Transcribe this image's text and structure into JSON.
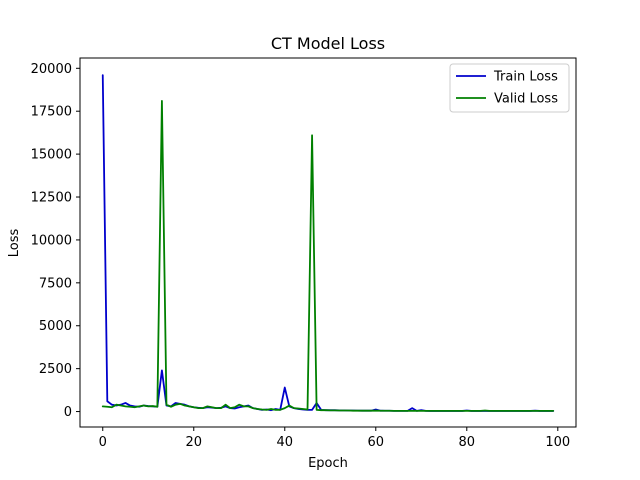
{
  "chart_data": {
    "type": "line",
    "title": "CT Model Loss",
    "xlabel": "Epoch",
    "ylabel": "Loss",
    "xlim": [
      -5,
      104
    ],
    "ylim": [
      -900,
      20600
    ],
    "xticks": [
      0,
      20,
      40,
      60,
      80,
      100
    ],
    "yticks": [
      0,
      2500,
      5000,
      7500,
      10000,
      12500,
      15000,
      17500,
      20000
    ],
    "grid": false,
    "legend_position": "top-right",
    "x": [
      0,
      1,
      2,
      3,
      4,
      5,
      6,
      7,
      8,
      9,
      10,
      11,
      12,
      13,
      14,
      15,
      16,
      17,
      18,
      19,
      20,
      21,
      22,
      23,
      24,
      25,
      26,
      27,
      28,
      29,
      30,
      31,
      32,
      33,
      34,
      35,
      36,
      37,
      38,
      39,
      40,
      41,
      42,
      43,
      44,
      45,
      46,
      47,
      48,
      49,
      50,
      51,
      52,
      53,
      54,
      55,
      56,
      57,
      58,
      59,
      60,
      61,
      62,
      63,
      64,
      65,
      66,
      67,
      68,
      69,
      70,
      71,
      72,
      73,
      74,
      75,
      76,
      77,
      78,
      79,
      80,
      81,
      82,
      83,
      84,
      85,
      86,
      87,
      88,
      89,
      90,
      91,
      92,
      93,
      94,
      95,
      96,
      97,
      98,
      99
    ],
    "series": [
      {
        "name": "Train Loss",
        "color": "#0000cc",
        "values": [
          19600,
          600,
          400,
          350,
          400,
          500,
          350,
          300,
          280,
          350,
          320,
          300,
          280,
          2400,
          350,
          300,
          500,
          450,
          400,
          300,
          250,
          220,
          200,
          250,
          230,
          200,
          220,
          300,
          200,
          180,
          250,
          300,
          350,
          200,
          150,
          100,
          120,
          80,
          150,
          100,
          1400,
          300,
          200,
          150,
          120,
          100,
          100,
          500,
          100,
          80,
          80,
          80,
          70,
          70,
          60,
          60,
          55,
          50,
          50,
          50,
          120,
          50,
          45,
          45,
          40,
          40,
          40,
          40,
          200,
          40,
          80,
          40,
          35,
          35,
          35,
          35,
          35,
          35,
          35,
          35,
          60,
          35,
          35,
          35,
          35,
          40,
          35,
          35,
          35,
          35,
          35,
          35,
          35,
          35,
          35,
          50,
          35,
          35,
          35,
          35
        ]
      },
      {
        "name": "Valid Loss",
        "color": "#008000",
        "values": [
          300,
          280,
          250,
          400,
          350,
          300,
          280,
          250,
          300,
          350,
          300,
          320,
          280,
          18100,
          400,
          280,
          400,
          450,
          350,
          300,
          250,
          200,
          200,
          300,
          250,
          200,
          200,
          400,
          200,
          250,
          400,
          300,
          300,
          200,
          150,
          120,
          100,
          150,
          100,
          100,
          200,
          350,
          200,
          180,
          150,
          120,
          16100,
          100,
          80,
          80,
          70,
          70,
          60,
          60,
          60,
          50,
          50,
          50,
          50,
          50,
          50,
          45,
          45,
          45,
          40,
          40,
          40,
          40,
          40,
          40,
          40,
          40,
          40,
          40,
          40,
          40,
          40,
          40,
          40,
          40,
          40,
          40,
          40,
          40,
          60,
          40,
          40,
          40,
          40,
          40,
          40,
          40,
          40,
          40,
          40,
          40,
          40,
          40,
          40,
          40
        ]
      }
    ]
  }
}
